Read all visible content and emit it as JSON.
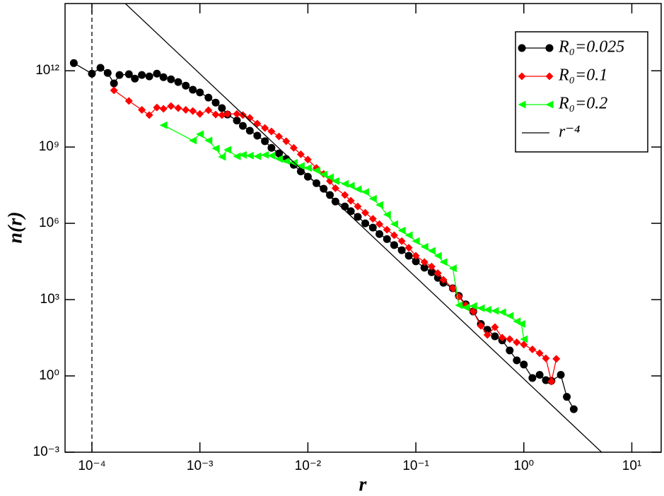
{
  "chart_data": {
    "type": "line",
    "x_label": "r",
    "y_label": "n(r)",
    "xscale": "log",
    "yscale": "log",
    "xlim": [
      5.64e-05,
      18.7
    ],
    "ylim": [
      0.001,
      440000000000000.0
    ],
    "xticks": [
      {
        "value": 0.0001,
        "label": "10⁻⁴"
      },
      {
        "value": 0.001,
        "label": "10⁻³"
      },
      {
        "value": 0.01,
        "label": "10⁻²"
      },
      {
        "value": 0.1,
        "label": "10⁻¹"
      },
      {
        "value": 1,
        "label": "10⁰"
      },
      {
        "value": 10,
        "label": "10¹"
      }
    ],
    "yticks": [
      {
        "value": 0.001,
        "label": "10⁻³"
      },
      {
        "value": 1,
        "label": "10⁰"
      },
      {
        "value": 1000.0,
        "label": "10³"
      },
      {
        "value": 1000000.0,
        "label": "10⁶"
      },
      {
        "value": 1000000000.0,
        "label": "10⁹"
      },
      {
        "value": 1000000000000.0,
        "label": "10¹²"
      }
    ],
    "grid": false,
    "legend_position": "upper right",
    "vline": {
      "x": 0.0001,
      "style": "dashed",
      "color": "#000000"
    },
    "series": [
      {
        "name": "R₀=0.025",
        "color": "#000000",
        "marker": "circle",
        "x": [
          6.8e-05,
          0.0001,
          0.00012,
          0.00014,
          0.00016,
          0.00018,
          0.00022,
          0.00025,
          0.00029,
          0.00034,
          0.0004,
          0.00046,
          0.00054,
          0.00063,
          0.00074,
          0.00086,
          0.001,
          0.0012,
          0.0014,
          0.0016,
          0.0018,
          0.0022,
          0.0025,
          0.0029,
          0.0034,
          0.004,
          0.0046,
          0.0054,
          0.0063,
          0.0074,
          0.0086,
          0.01,
          0.012,
          0.014,
          0.016,
          0.018,
          0.022,
          0.025,
          0.029,
          0.034,
          0.04,
          0.046,
          0.054,
          0.063,
          0.074,
          0.086,
          0.1,
          0.12,
          0.14,
          0.16,
          0.18,
          0.22,
          0.25,
          0.29,
          0.34,
          0.4,
          0.46,
          0.54,
          0.63,
          0.74,
          0.86,
          1,
          1.2,
          1.4,
          1.6,
          1.8,
          2.2,
          2.5,
          2.9
        ],
        "values": [
          2000000000000.0,
          770000000000.0,
          1300000000000.0,
          820000000000.0,
          320000000000.0,
          680000000000.0,
          730000000000.0,
          490000000000.0,
          680000000000.0,
          600000000000.0,
          770000000000.0,
          560000000000.0,
          460000000000.0,
          360000000000.0,
          260000000000.0,
          180000000000.0,
          140000000000.0,
          88000000000.0,
          56000000000.0,
          34000000000.0,
          19000000000.0,
          11000000000.0,
          6800000000.0,
          4400000000.0,
          2800000000.0,
          1700000000.0,
          930000000.0,
          560000000.0,
          340000000.0,
          200000000.0,
          110000000.0,
          68000000.0,
          38000000.0,
          23000000.0,
          13000000.0,
          7200000.0,
          4600000.0,
          3000000.0,
          1800000.0,
          1000000.0,
          680000.0,
          380000.0,
          240000.0,
          140000.0,
          88000.0,
          53000.0,
          32000.0,
          18000.0,
          12000.0,
          7200,
          4600,
          2800,
          1400,
          650,
          340,
          110,
          65,
          36,
          25,
          10,
          4.1,
          2.8,
          0.83,
          1.1,
          0.68,
          0.64,
          1.1,
          0.15,
          0.049
        ]
      },
      {
        "name": "R₀=0.1",
        "color": "#ff0000",
        "marker": "diamond",
        "x": [
          0.00016,
          0.00022,
          0.00029,
          0.00034,
          0.0004,
          0.00046,
          0.00054,
          0.00063,
          0.00074,
          0.00086,
          0.001,
          0.0012,
          0.0014,
          0.0016,
          0.0018,
          0.0022,
          0.0025,
          0.0029,
          0.0034,
          0.004,
          0.0046,
          0.0054,
          0.0063,
          0.0074,
          0.0086,
          0.01,
          0.012,
          0.014,
          0.016,
          0.018,
          0.022,
          0.025,
          0.029,
          0.034,
          0.04,
          0.046,
          0.054,
          0.063,
          0.074,
          0.086,
          0.1,
          0.12,
          0.14,
          0.16,
          0.18,
          0.22,
          0.25,
          0.29,
          0.34,
          0.4,
          0.46,
          0.54,
          0.63,
          0.74,
          0.86,
          1,
          1.2,
          1.4,
          1.6,
          1.8,
          2
        ],
        "values": [
          170000000000.0,
          65000000000.0,
          29000000000.0,
          18000000000.0,
          36000000000.0,
          32000000000.0,
          41000000000.0,
          34000000000.0,
          29000000000.0,
          26000000000.0,
          20000000000.0,
          28000000000.0,
          19000000000.0,
          18000000000.0,
          20000000000.0,
          20000000000.0,
          18000000000.0,
          14000000000.0,
          8300000000.0,
          5600000000.0,
          4100000000.0,
          2600000000.0,
          1700000000.0,
          930000000.0,
          520000000.0,
          320000000.0,
          150000000.0,
          88000000.0,
          46000000.0,
          24000000.0,
          13000000.0,
          7700000.0,
          4600000.0,
          2600000.0,
          1500000.0,
          930000.0,
          560000.0,
          340000.0,
          200000.0,
          110000.0,
          53000.0,
          30000.0,
          20000.0,
          11000.0,
          6000,
          2800,
          1300,
          600,
          340,
          93,
          41,
          83,
          32,
          28,
          21,
          17,
          11,
          7.8,
          4.9,
          0.6,
          4.7
        ]
      },
      {
        "name": "R₀=0.2",
        "color": "#00ff00",
        "marker": "triangle-left",
        "x": [
          0.00046,
          0.00086,
          0.001,
          0.0012,
          0.0014,
          0.0016,
          0.0018,
          0.0022,
          0.0025,
          0.0029,
          0.0034,
          0.004,
          0.0046,
          0.0054,
          0.0063,
          0.0074,
          0.0086,
          0.01,
          0.012,
          0.014,
          0.016,
          0.018,
          0.022,
          0.025,
          0.029,
          0.034,
          0.04,
          0.046,
          0.054,
          0.063,
          0.074,
          0.086,
          0.1,
          0.12,
          0.14,
          0.16,
          0.18,
          0.22,
          0.25,
          0.29,
          0.34,
          0.4,
          0.46,
          0.54,
          0.63,
          0.74,
          0.86,
          0.95,
          1
        ],
        "values": [
          7200000000.0,
          1800000000.0,
          3200000000.0,
          1800000000.0,
          880000000.0,
          410000000.0,
          780000000.0,
          430000000.0,
          490000000.0,
          460000000.0,
          430000000.0,
          490000000.0,
          460000000.0,
          340000000.0,
          280000000.0,
          240000000.0,
          180000000.0,
          150000000.0,
          120000000.0,
          83000000.0,
          65000000.0,
          46000000.0,
          36000000.0,
          30000000.0,
          22000000.0,
          17000000.0,
          9300000.0,
          5300000.0,
          2200000.0,
          930000.0,
          520000.0,
          340000.0,
          200000.0,
          120000.0,
          83000.0,
          53000.0,
          30000.0,
          17000.0,
          600,
          490,
          560,
          460,
          400,
          360,
          320,
          230,
          140,
          110,
          28
        ]
      },
      {
        "name": "r⁻⁴",
        "color": "#000000",
        "marker": "none",
        "x": [
          0.0001,
          10
        ],
        "values": [
          7600000000000000.0,
          7.6e-05
        ]
      }
    ]
  }
}
